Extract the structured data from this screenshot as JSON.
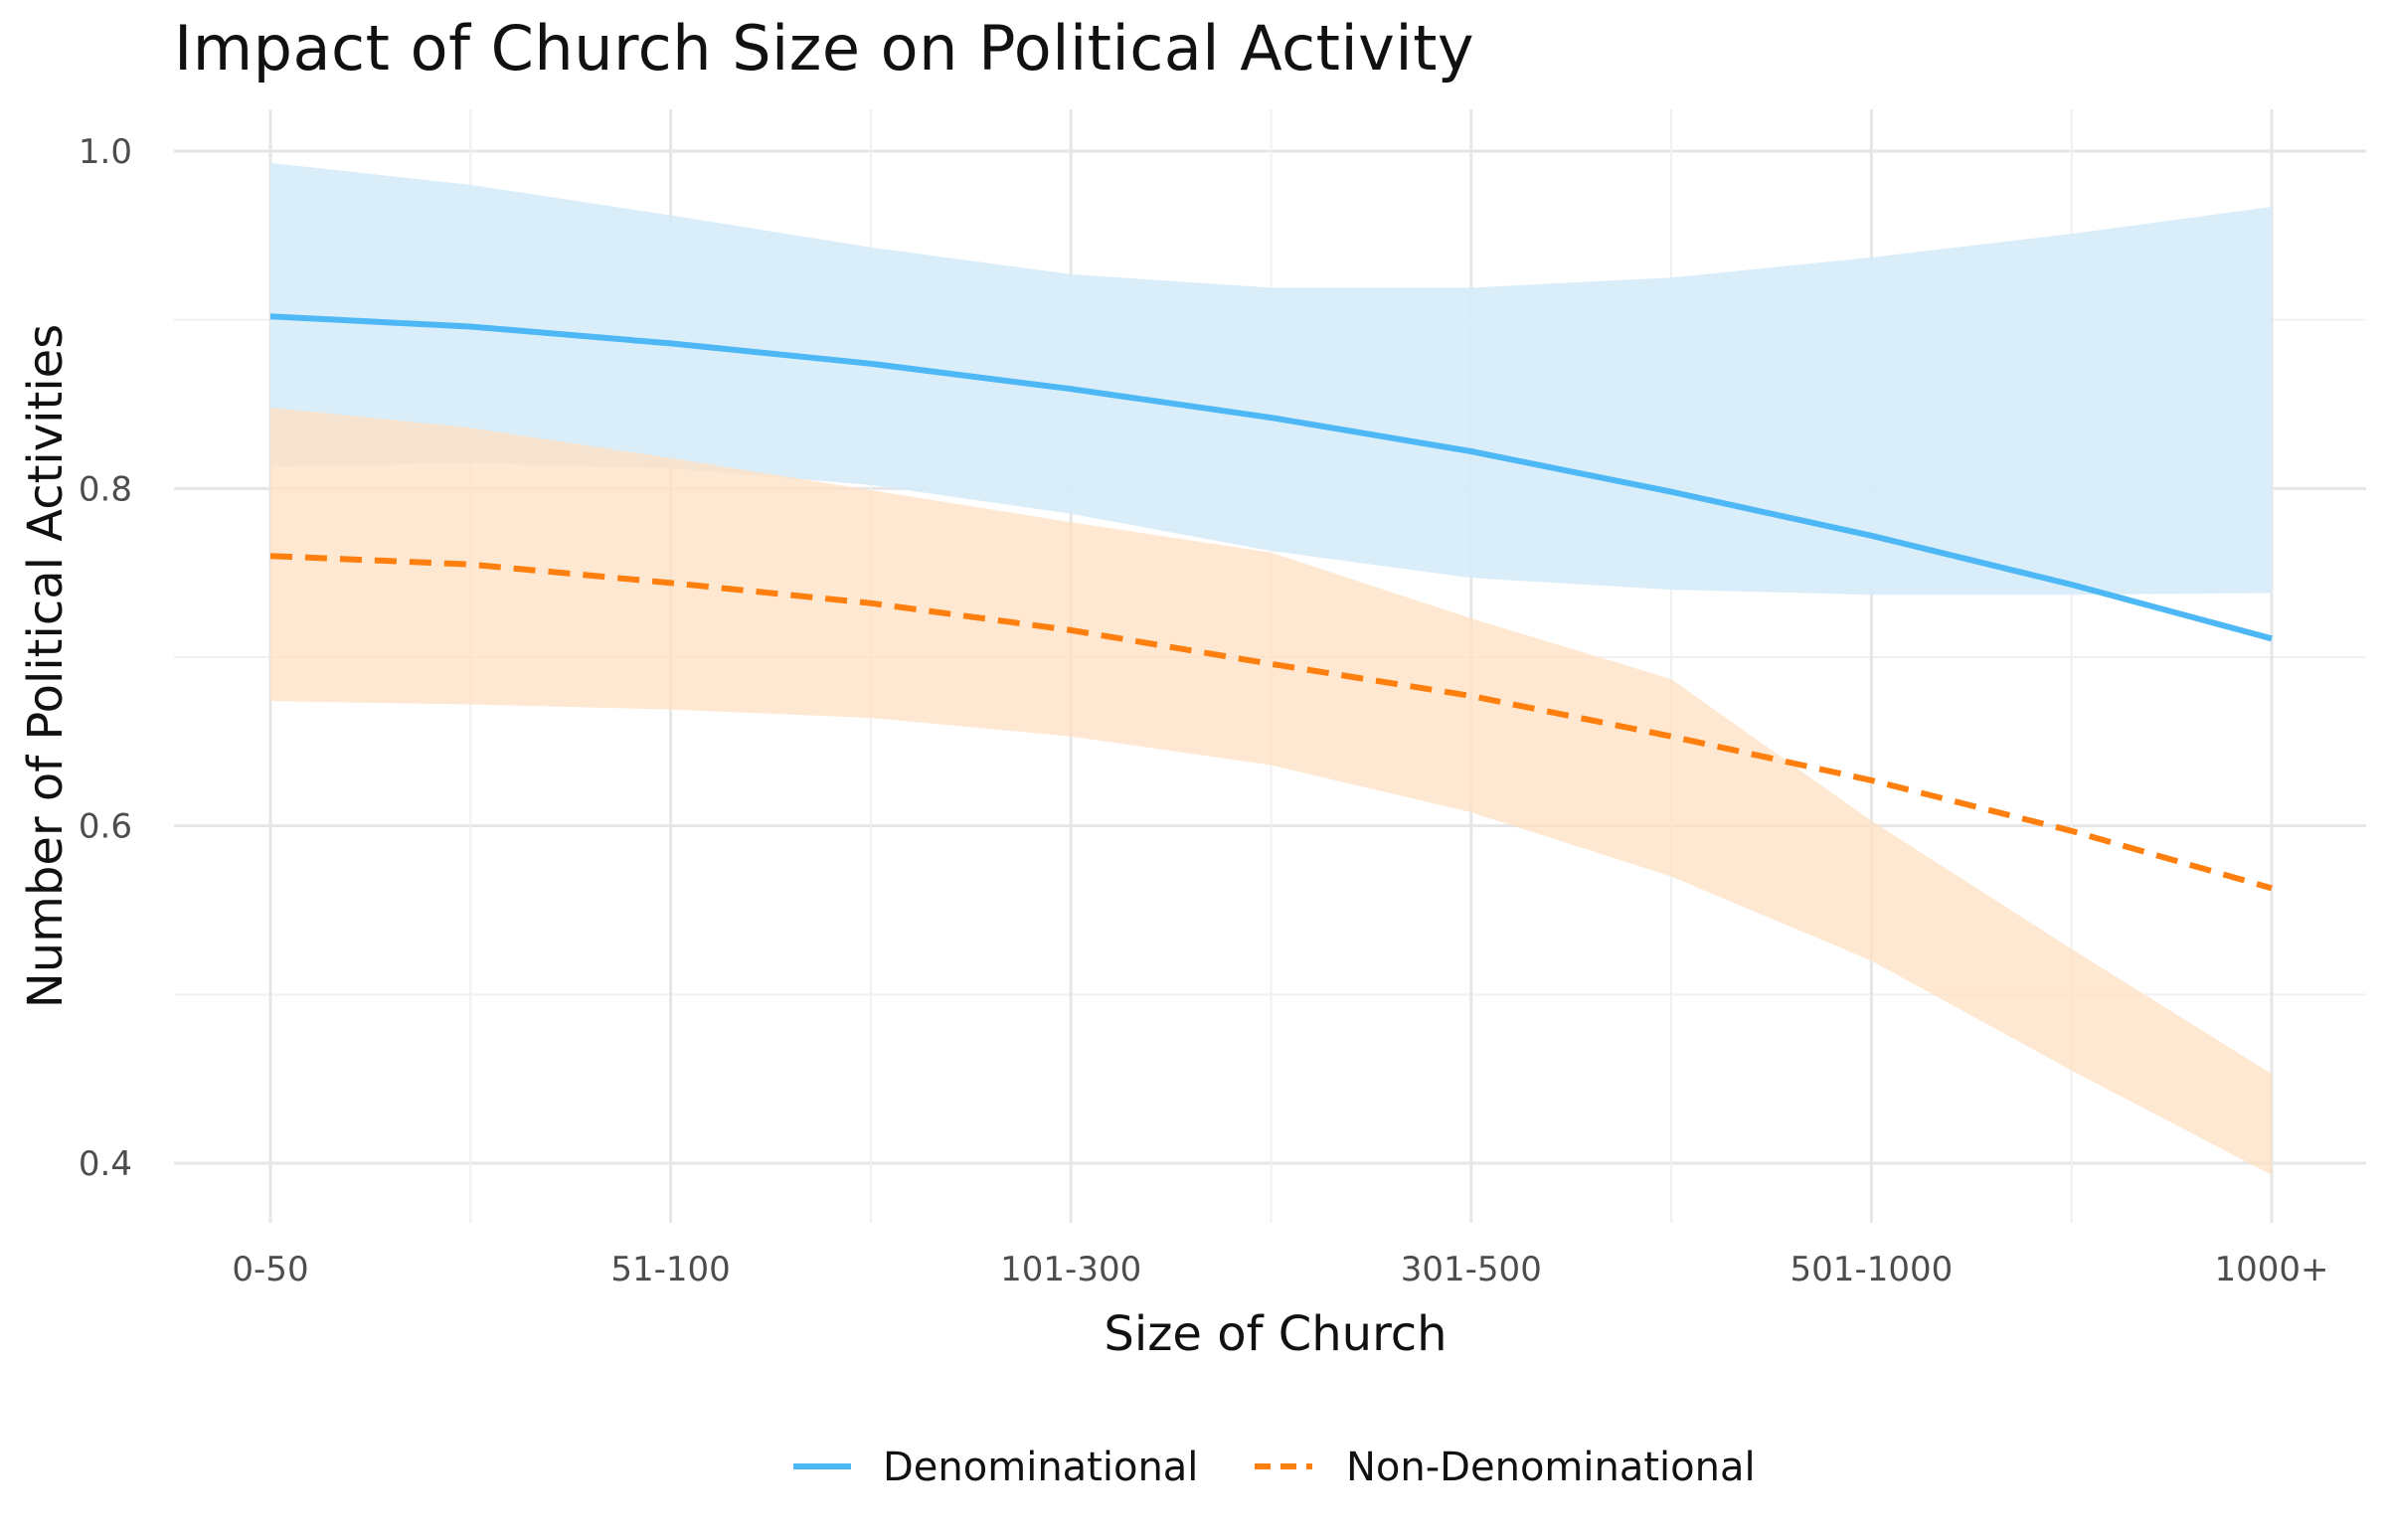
{
  "chart_data": {
    "type": "line",
    "title": "Impact of Church Size on Political Activity",
    "xlabel": "Size of Church",
    "ylabel": "Number of Political Activities",
    "categories": [
      "0-50",
      "51-100",
      "101-300",
      "301-500",
      "501-1000",
      "1000+"
    ],
    "x": [
      1,
      1.5,
      2,
      2.5,
      3,
      3.5,
      4,
      4.5,
      5,
      5.5,
      6
    ],
    "ylim": [
      0.375,
      1.0
    ],
    "yticks": [
      "0.4",
      "0.6",
      "0.8",
      "1.0"
    ],
    "ytick_values": [
      0.4,
      0.6,
      0.8,
      1.0
    ],
    "grid": true,
    "legend_position": "bottom",
    "series": [
      {
        "name": "Denominational",
        "color": "#4db8f5",
        "band_color": "#d6ecfa",
        "line_style": "solid",
        "values": [
          0.902,
          0.896,
          0.886,
          0.874,
          0.859,
          0.842,
          0.822,
          0.798,
          0.772,
          0.743,
          0.711
        ],
        "lower": [
          0.813,
          0.815,
          0.812,
          0.802,
          0.785,
          0.763,
          0.747,
          0.74,
          0.737,
          0.737,
          0.738
        ],
        "upper": [
          0.993,
          0.98,
          0.962,
          0.943,
          0.927,
          0.919,
          0.919,
          0.925,
          0.937,
          0.951,
          0.967
        ]
      },
      {
        "name": "Non-Denominational",
        "color": "#ff7f0e",
        "band_color": "#ffe0c2",
        "line_style": "dashed",
        "values": [
          0.76,
          0.755,
          0.744,
          0.732,
          0.716,
          0.696,
          0.677,
          0.653,
          0.627,
          0.597,
          0.563
        ],
        "lower": [
          0.674,
          0.672,
          0.669,
          0.664,
          0.653,
          0.636,
          0.608,
          0.57,
          0.52,
          0.455,
          0.393
        ],
        "upper": [
          0.848,
          0.836,
          0.818,
          0.799,
          0.78,
          0.762,
          0.723,
          0.687,
          0.603,
          0.527,
          0.453
        ]
      }
    ]
  }
}
